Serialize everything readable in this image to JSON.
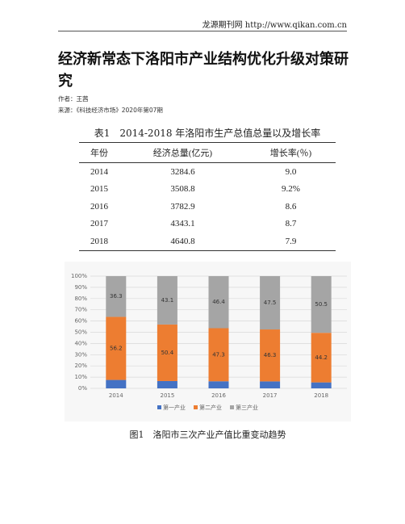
{
  "header": {
    "site": "龙源期刊网 http://www.qikan.com.cn",
    "title": "经济新常态下洛阳市产业结构优化升级对策研究",
    "author": "作者：王茜",
    "source": "来源：《科技经济市场》2020年第07期"
  },
  "table": {
    "caption": "表1　2014-2018 年洛阳市生产总值总量以及增长率",
    "columns": [
      "年份",
      "经济总量(亿元)",
      "增长率(％)"
    ],
    "rows": [
      [
        "2014",
        "3284.6",
        "9.0"
      ],
      [
        "2015",
        "3508.8",
        "9.2%"
      ],
      [
        "2016",
        "3782.9",
        "8.6"
      ],
      [
        "2017",
        "4343.1",
        "8.7"
      ],
      [
        "2018",
        "4640.8",
        "7.9"
      ]
    ]
  },
  "chart_data": {
    "type": "stacked_bar",
    "categories": [
      "2014",
      "2015",
      "2016",
      "2017",
      "2018"
    ],
    "series": [
      {
        "name": "第一产业",
        "color": "#4472c4",
        "values": [
          7.5,
          6.5,
          6.3,
          6.2,
          5.3
        ],
        "show_labels": false
      },
      {
        "name": "第二产业",
        "color": "#ed7d31",
        "values": [
          56.2,
          50.4,
          47.3,
          46.3,
          44.2
        ],
        "show_labels": true
      },
      {
        "name": "第三产业",
        "color": "#a5a5a5",
        "values": [
          36.3,
          43.1,
          46.4,
          47.5,
          50.5
        ],
        "show_labels": true
      }
    ],
    "ylim": [
      0,
      100
    ],
    "yticks": [
      {
        "value": 0,
        "label": "0%"
      },
      {
        "value": 10,
        "label": "10%"
      },
      {
        "value": 20,
        "label": "20%"
      },
      {
        "value": 30,
        "label": "30%"
      },
      {
        "value": 40,
        "label": "40%"
      },
      {
        "value": 50,
        "label": "50%"
      },
      {
        "value": 60,
        "label": "60%"
      },
      {
        "value": 70,
        "label": "70%"
      },
      {
        "value": 80,
        "label": "80%"
      },
      {
        "value": 90,
        "label": "90%"
      },
      {
        "value": 100,
        "label": "100%"
      }
    ],
    "grid": true
  },
  "figure_caption": "图1　洛阳市三次产业产值比重变动趋势"
}
